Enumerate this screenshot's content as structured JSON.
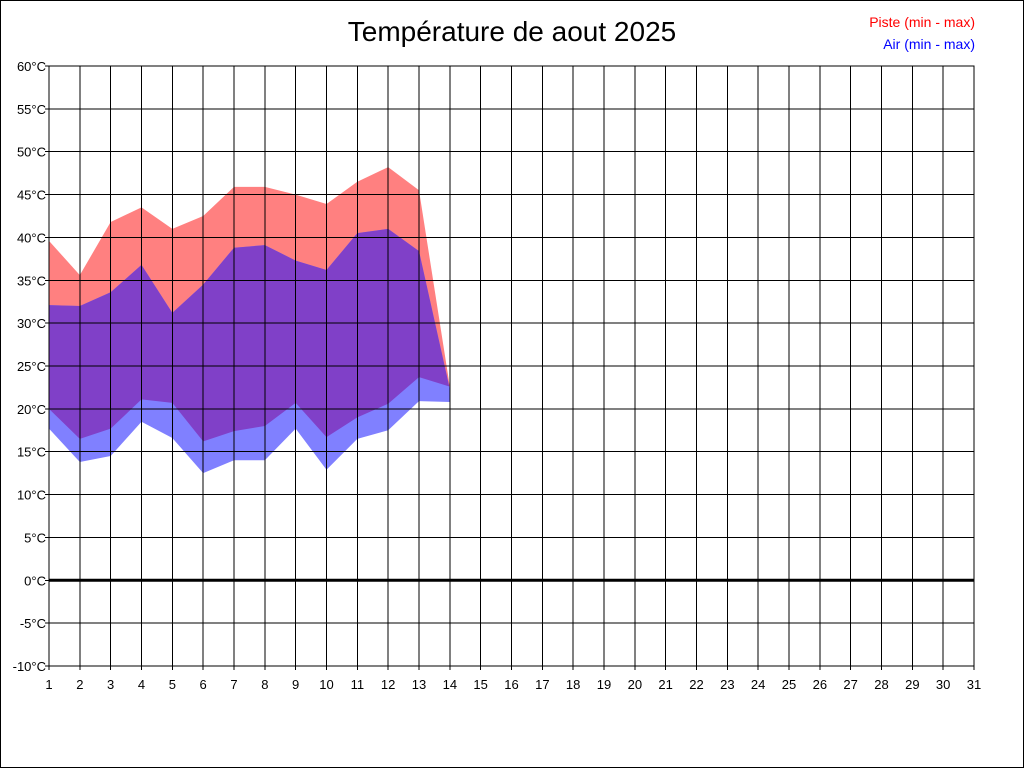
{
  "chart_data": {
    "type": "area",
    "title": "Température de aout 2025",
    "x": [
      1,
      2,
      3,
      4,
      5,
      6,
      7,
      8,
      9,
      10,
      11,
      12,
      13,
      14,
      15,
      16,
      17,
      18,
      19,
      20,
      21,
      22,
      23,
      24,
      25,
      26,
      27,
      28,
      29,
      30,
      31
    ],
    "x_tick_labels": [
      "1",
      "2",
      "3",
      "4",
      "5",
      "6",
      "7",
      "8",
      "9",
      "10",
      "11",
      "12",
      "13",
      "14",
      "15",
      "16",
      "17",
      "18",
      "19",
      "20",
      "21",
      "22",
      "23",
      "24",
      "25",
      "26",
      "27",
      "28",
      "29",
      "30",
      "31"
    ],
    "y_ticks": [
      -10,
      -5,
      0,
      5,
      10,
      15,
      20,
      25,
      30,
      35,
      40,
      45,
      50,
      55,
      60
    ],
    "y_tick_labels": [
      "-10°C",
      "-5°C",
      "0°C",
      "5°C",
      "10°C",
      "15°C",
      "20°C",
      "25°C",
      "30°C",
      "35°C",
      "40°C",
      "45°C",
      "50°C",
      "55°C",
      "60°C"
    ],
    "xlim": [
      1,
      31
    ],
    "ylim": [
      -10,
      60
    ],
    "grid": true,
    "zero_line": true,
    "legend_position": "top-right",
    "series": [
      {
        "name": "Piste (min - max)",
        "color": "#ff8080",
        "days": [
          1,
          2,
          3,
          4,
          5,
          6,
          7,
          8,
          9,
          10,
          11,
          12,
          13,
          14
        ],
        "min": [
          20.0,
          16.5,
          17.7,
          21.1,
          20.7,
          16.2,
          17.4,
          18.0,
          20.7,
          16.7,
          19.0,
          20.6,
          23.7,
          22.6
        ],
        "max": [
          39.6,
          35.6,
          41.8,
          43.5,
          41.0,
          42.5,
          45.9,
          45.9,
          45.0,
          43.9,
          46.5,
          48.2,
          45.5,
          22.6
        ]
      },
      {
        "name": "Air (min - max)",
        "color": "#8080ff",
        "days": [
          1,
          2,
          3,
          4,
          5,
          6,
          7,
          8,
          9,
          10,
          11,
          12,
          13,
          14
        ],
        "min": [
          17.7,
          13.8,
          14.5,
          18.5,
          16.6,
          12.5,
          14.0,
          14.0,
          17.7,
          12.9,
          16.5,
          17.5,
          20.9,
          20.8
        ],
        "max": [
          32.1,
          32.0,
          33.6,
          36.8,
          31.2,
          34.5,
          38.8,
          39.1,
          37.3,
          36.2,
          40.5,
          41.0,
          38.4,
          22.3
        ]
      }
    ],
    "overlap_color": "#8040c8"
  }
}
